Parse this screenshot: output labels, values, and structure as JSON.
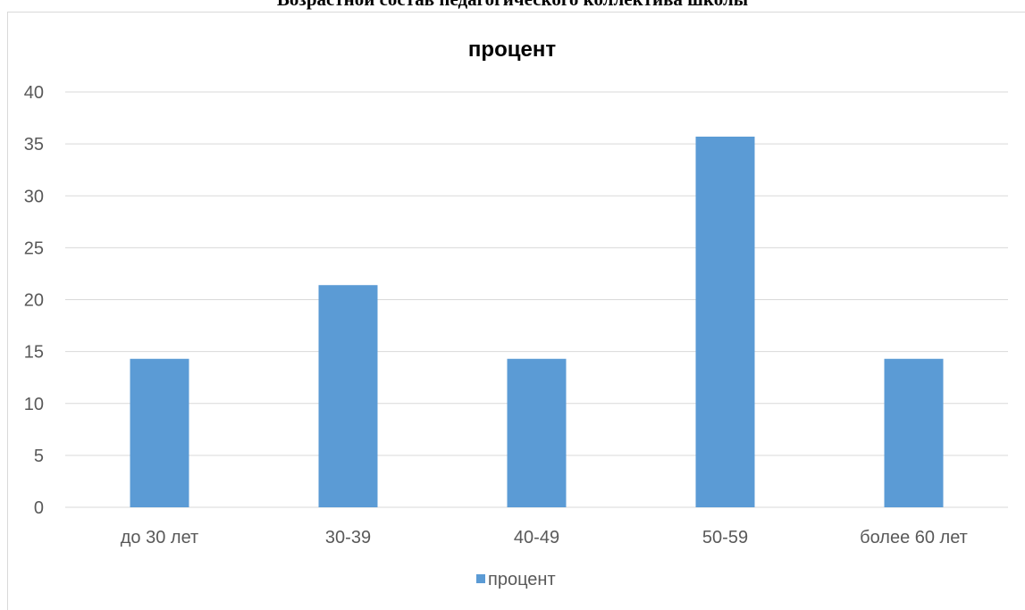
{
  "document": {
    "heading": "Возрастной состав педагогического коллектива школы"
  },
  "colors": {
    "bar": "#5b9bd5",
    "grid": "#d9d9d9",
    "axis_text": "#595959",
    "title_text": "#000000"
  },
  "chart_data": {
    "type": "bar",
    "title": "процент",
    "categories": [
      "до 30 лет",
      "30-39",
      "40-49",
      "50-59",
      "более 60 лет"
    ],
    "series": [
      {
        "name": "процент",
        "values": [
          14.3,
          21.4,
          14.3,
          35.7,
          14.3
        ]
      }
    ],
    "ylim": [
      0,
      40
    ],
    "yticks": [
      0,
      5,
      10,
      15,
      20,
      25,
      30,
      35,
      40
    ],
    "grid": true,
    "legend_position": "bottom"
  }
}
